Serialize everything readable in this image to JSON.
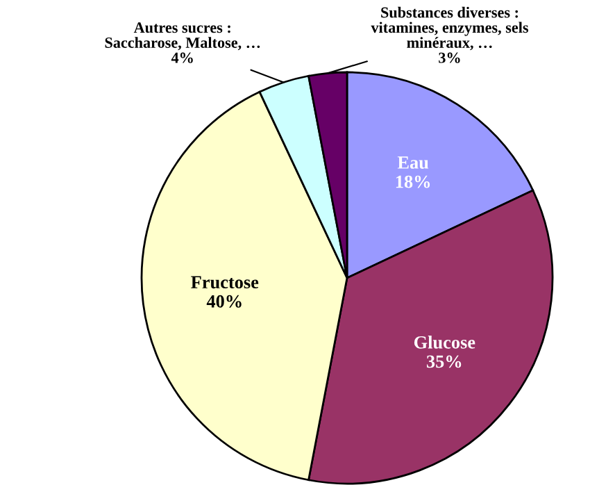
{
  "chart_data": {
    "type": "pie",
    "categories": [
      "Eau",
      "Glucose",
      "Fructose",
      "Autres sucres :\nSaccharose, Maltose, …",
      "Substances diverses :\nvitamines, enzymes, sels\nminéraux, …"
    ],
    "values": [
      18,
      35,
      40,
      4,
      3
    ],
    "colors": [
      "#9999ff",
      "#993366",
      "#ffffcc",
      "#ccffff",
      "#660066"
    ],
    "value_labels": [
      "18%",
      "35%",
      "40%",
      "4%",
      "3%"
    ]
  }
}
